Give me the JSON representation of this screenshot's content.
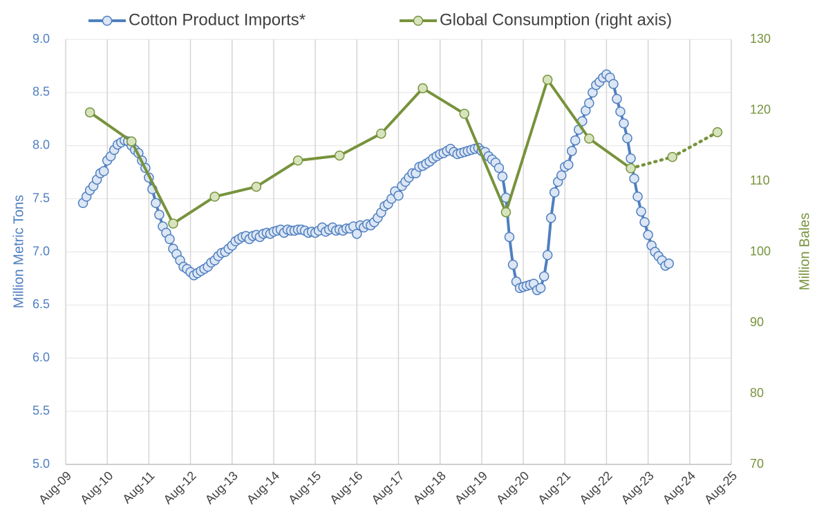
{
  "chart_data": {
    "type": "line",
    "series": [
      {
        "name": "Cotton Product Imports*",
        "color": "#4f7fc0",
        "marker_fill": "#dce6f4",
        "x": [
          "2010-01",
          "2010-02",
          "2010-03",
          "2010-04",
          "2010-05",
          "2010-06",
          "2010-07",
          "2010-08",
          "2010-09",
          "2010-10",
          "2010-11",
          "2010-12",
          "2011-01",
          "2011-02",
          "2011-03",
          "2011-04",
          "2011-05",
          "2011-06",
          "2011-07",
          "2011-08",
          "2011-09",
          "2011-10",
          "2011-11",
          "2011-12",
          "2012-01",
          "2012-02",
          "2012-03",
          "2012-04",
          "2012-05",
          "2012-06",
          "2012-07",
          "2012-08",
          "2012-09",
          "2012-10",
          "2012-11",
          "2012-12",
          "2013-01",
          "2013-02",
          "2013-03",
          "2013-04",
          "2013-05",
          "2013-06",
          "2013-07",
          "2013-08",
          "2013-09",
          "2013-10",
          "2013-11",
          "2013-12",
          "2014-01",
          "2014-02",
          "2014-03",
          "2014-04",
          "2014-05",
          "2014-06",
          "2014-07",
          "2014-08",
          "2014-09",
          "2014-10",
          "2014-11",
          "2014-12",
          "2015-01",
          "2015-02",
          "2015-03",
          "2015-04",
          "2015-05",
          "2015-06",
          "2015-07",
          "2015-08",
          "2015-09",
          "2015-10",
          "2015-11",
          "2015-12",
          "2016-01",
          "2016-02",
          "2016-03",
          "2016-04",
          "2016-05",
          "2016-06",
          "2016-07",
          "2016-08",
          "2016-09",
          "2016-10",
          "2016-11",
          "2016-12",
          "2017-01",
          "2017-02",
          "2017-03",
          "2017-04",
          "2017-05",
          "2017-06",
          "2017-07",
          "2017-08",
          "2017-09",
          "2017-10",
          "2017-11",
          "2017-12",
          "2018-01",
          "2018-02",
          "2018-03",
          "2018-04",
          "2018-05",
          "2018-06",
          "2018-07",
          "2018-08",
          "2018-09",
          "2018-10",
          "2018-11",
          "2018-12",
          "2019-01",
          "2019-02",
          "2019-03",
          "2019-04",
          "2019-05",
          "2019-06",
          "2019-07",
          "2019-08",
          "2019-09",
          "2019-10",
          "2019-11",
          "2019-12",
          "2020-01",
          "2020-02",
          "2020-03",
          "2020-04",
          "2020-05",
          "2020-06",
          "2020-07",
          "2020-08",
          "2020-09",
          "2020-10",
          "2020-11",
          "2020-12",
          "2021-01",
          "2021-02",
          "2021-03",
          "2021-04",
          "2021-05",
          "2021-06",
          "2021-07",
          "2021-08",
          "2021-09",
          "2021-10",
          "2021-11",
          "2021-12",
          "2022-01",
          "2022-02",
          "2022-03",
          "2022-04",
          "2022-05",
          "2022-06",
          "2022-07",
          "2022-08",
          "2022-09",
          "2022-10",
          "2022-11",
          "2022-12",
          "2023-01",
          "2023-02",
          "2023-03",
          "2023-04",
          "2023-05",
          "2023-06",
          "2023-07",
          "2023-08",
          "2023-09",
          "2023-10",
          "2023-11",
          "2023-12",
          "2024-01",
          "2024-02"
        ],
        "values": [
          7.46,
          7.52,
          7.58,
          7.62,
          7.68,
          7.74,
          7.76,
          7.86,
          7.9,
          7.96,
          8.01,
          8.03,
          8.05,
          8.04,
          8.0,
          7.96,
          7.93,
          7.86,
          7.79,
          7.7,
          7.59,
          7.46,
          7.35,
          7.24,
          7.18,
          7.12,
          7.03,
          6.98,
          6.92,
          6.86,
          6.84,
          6.81,
          6.78,
          6.8,
          6.82,
          6.84,
          6.86,
          6.9,
          6.92,
          6.96,
          6.99,
          7.0,
          7.03,
          7.06,
          7.1,
          7.12,
          7.14,
          7.15,
          7.12,
          7.15,
          7.16,
          7.14,
          7.17,
          7.18,
          7.17,
          7.19,
          7.2,
          7.21,
          7.18,
          7.21,
          7.2,
          7.2,
          7.21,
          7.21,
          7.2,
          7.18,
          7.19,
          7.18,
          7.2,
          7.23,
          7.19,
          7.21,
          7.23,
          7.2,
          7.21,
          7.2,
          7.22,
          7.22,
          7.24,
          7.17,
          7.25,
          7.23,
          7.26,
          7.25,
          7.28,
          7.32,
          7.37,
          7.43,
          7.45,
          7.5,
          7.57,
          7.53,
          7.62,
          7.66,
          7.7,
          7.74,
          7.74,
          7.8,
          7.81,
          7.83,
          7.85,
          7.88,
          7.9,
          7.92,
          7.93,
          7.95,
          7.97,
          7.94,
          7.92,
          7.93,
          7.94,
          7.95,
          7.96,
          7.97,
          7.98,
          7.95,
          7.94,
          7.9,
          7.87,
          7.84,
          7.79,
          7.71,
          7.51,
          7.14,
          6.88,
          6.72,
          6.66,
          6.67,
          6.68,
          6.69,
          6.7,
          6.64,
          6.66,
          6.77,
          6.97,
          7.32,
          7.56,
          7.66,
          7.72,
          7.8,
          7.82,
          7.95,
          8.05,
          8.15,
          8.23,
          8.33,
          8.4,
          8.5,
          8.57,
          8.6,
          8.64,
          8.67,
          8.64,
          8.58,
          8.44,
          8.32,
          8.21,
          8.07,
          7.88,
          7.69,
          7.52,
          7.38,
          7.28,
          7.16,
          7.06,
          7.0,
          6.96,
          6.92,
          6.87,
          6.89
        ]
      },
      {
        "name": "Global Consumption (right axis)",
        "color": "#77933c",
        "marker_fill": "#d7e4bd",
        "axis": "y2",
        "dashed_from": 13,
        "x": [
          "2010-03",
          "2011-03",
          "2012-03",
          "2013-03",
          "2014-03",
          "2015-03",
          "2016-03",
          "2017-03",
          "2018-03",
          "2019-03",
          "2020-03",
          "2021-03",
          "2022-03",
          "2023-03",
          "2024-03",
          "2025-04"
        ],
        "values": [
          119.7,
          115.6,
          104.0,
          107.8,
          109.2,
          112.9,
          113.6,
          116.7,
          123.1,
          119.5,
          105.6,
          124.3,
          116.0,
          111.8,
          113.4,
          116.9
        ]
      }
    ],
    "xlim": [
      "2009-08",
      "2025-08"
    ],
    "xticks": [
      {
        "value": "2009-08",
        "label": "Aug-09"
      },
      {
        "value": "2010-08",
        "label": "Aug-10"
      },
      {
        "value": "2011-08",
        "label": "Aug-11"
      },
      {
        "value": "2012-08",
        "label": "Aug-12"
      },
      {
        "value": "2013-08",
        "label": "Aug-13"
      },
      {
        "value": "2014-08",
        "label": "Aug-14"
      },
      {
        "value": "2015-08",
        "label": "Aug-15"
      },
      {
        "value": "2016-08",
        "label": "Aug-16"
      },
      {
        "value": "2017-08",
        "label": "Aug-17"
      },
      {
        "value": "2018-08",
        "label": "Aug-18"
      },
      {
        "value": "2019-08",
        "label": "Aug-19"
      },
      {
        "value": "2020-08",
        "label": "Aug-20"
      },
      {
        "value": "2021-08",
        "label": "Aug-21"
      },
      {
        "value": "2022-08",
        "label": "Aug-22"
      },
      {
        "value": "2023-08",
        "label": "Aug-23"
      },
      {
        "value": "2024-08",
        "label": "Aug-24"
      },
      {
        "value": "2025-08",
        "label": "Aug-25"
      }
    ],
    "ylim": [
      5,
      9
    ],
    "yticks": [
      {
        "value": 5,
        "label": "5.0"
      },
      5.5,
      {
        "value": 6,
        "label": "6.0"
      },
      6.5,
      {
        "value": 7,
        "label": "7.0"
      },
      7.5,
      {
        "value": 8,
        "label": "8.0"
      },
      8.5,
      {
        "value": 9,
        "label": "9.0"
      }
    ],
    "y2lim": [
      70,
      130
    ],
    "y2ticks": [
      70,
      80,
      90,
      100,
      110,
      120,
      130
    ],
    "ylabel": "Million Metric Tons",
    "y2label": "Million Bales",
    "grid": true,
    "legend": "top"
  }
}
